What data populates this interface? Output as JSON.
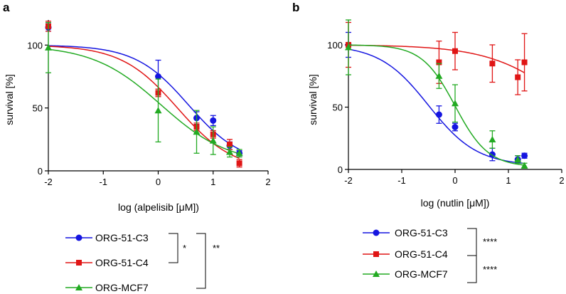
{
  "chart_data": [
    {
      "type": "scatter",
      "panel_label": "a",
      "xlabel": "log (alpelisib [μM])",
      "ylabel": "survival [%]",
      "xlim": [
        -2,
        2
      ],
      "ylim": [
        0,
        120
      ],
      "x_ticks": [
        -2,
        -1,
        0,
        1,
        2
      ],
      "x_tick_labels": [
        "-2",
        "-1",
        "0",
        "1",
        "2"
      ],
      "y_ticks": [
        0,
        50,
        100
      ],
      "y_tick_labels": [
        "0",
        "50",
        "100"
      ],
      "series": [
        {
          "name": "ORG-51-C3",
          "color": "#1515e0",
          "marker": "circle",
          "points": [
            {
              "x": -2,
              "y": 114,
              "err": 3
            },
            {
              "x": 0,
              "y": 75,
              "err": 13
            },
            {
              "x": 0.699,
              "y": 42,
              "err": 5
            },
            {
              "x": 1,
              "y": 40,
              "err": 4
            },
            {
              "x": 1.301,
              "y": 20,
              "err": 3
            },
            {
              "x": 1.477,
              "y": 14,
              "err": 2
            }
          ],
          "fit": {
            "top": 100,
            "bottom": 5,
            "logIC50": 0.55,
            "hill": -0.9
          }
        },
        {
          "name": "ORG-51-C4",
          "color": "#e01515",
          "marker": "square",
          "points": [
            {
              "x": -2,
              "y": 115,
              "err": 4
            },
            {
              "x": 0,
              "y": 62,
              "err": 3
            },
            {
              "x": 0.699,
              "y": 35,
              "err": 3
            },
            {
              "x": 1,
              "y": 29,
              "err": 3
            },
            {
              "x": 1.301,
              "y": 21,
              "err": 4
            },
            {
              "x": 1.477,
              "y": 6,
              "err": 3
            }
          ],
          "fit": {
            "top": 100,
            "bottom": 0,
            "logIC50": 0.35,
            "hill": -0.85
          }
        },
        {
          "name": "ORG-MCF7",
          "color": "#22aa22",
          "marker": "triangle",
          "points": [
            {
              "x": -2,
              "y": 98,
              "err": 20
            },
            {
              "x": 0,
              "y": 48,
              "err": 25
            },
            {
              "x": 0.699,
              "y": 31,
              "err": 17
            },
            {
              "x": 1,
              "y": 24,
              "err": 11
            },
            {
              "x": 1.301,
              "y": 15,
              "err": 4
            },
            {
              "x": 1.477,
              "y": 14,
              "err": 3
            }
          ],
          "fit": {
            "top": 100,
            "bottom": 5,
            "logIC50": 0.05,
            "hill": -0.7
          }
        }
      ],
      "legend": {
        "entries": [
          "ORG-51-C3",
          "ORG-51-C4",
          "ORG-MCF7"
        ],
        "significance": [
          {
            "between": [
              "ORG-51-C3",
              "ORG-51-C4"
            ],
            "label": "*"
          },
          {
            "between": [
              "ORG-51-C3",
              "ORG-MCF7"
            ],
            "label": "**"
          }
        ]
      }
    },
    {
      "type": "scatter",
      "panel_label": "b",
      "xlabel": "log (nutlin [μM])",
      "ylabel": "survival [%]",
      "xlim": [
        -2,
        2
      ],
      "ylim": [
        0,
        120
      ],
      "x_ticks": [
        -2,
        -1,
        0,
        1,
        2
      ],
      "x_tick_labels": [
        "-2",
        "-1",
        "0",
        "1",
        "2"
      ],
      "y_ticks": [
        0,
        50,
        100
      ],
      "y_tick_labels": [
        "0",
        "50",
        "100"
      ],
      "series": [
        {
          "name": "ORG-51-C3",
          "color": "#1515e0",
          "marker": "circle",
          "points": [
            {
              "x": -2,
              "y": 100,
              "err": 10
            },
            {
              "x": -0.301,
              "y": 44,
              "err": 7
            },
            {
              "x": 0,
              "y": 34,
              "err": 3
            },
            {
              "x": 0.699,
              "y": 12,
              "err": 5
            },
            {
              "x": 1.176,
              "y": 8,
              "err": 3
            },
            {
              "x": 1.301,
              "y": 11,
              "err": 2
            }
          ],
          "fit": {
            "top": 100,
            "bottom": 3,
            "logIC50": -0.5,
            "hill": -0.95
          }
        },
        {
          "name": "ORG-51-C4",
          "color": "#e01515",
          "marker": "square",
          "points": [
            {
              "x": -2,
              "y": 100,
              "err": 18
            },
            {
              "x": -0.301,
              "y": 86,
              "err": 17
            },
            {
              "x": 0,
              "y": 95,
              "err": 15
            },
            {
              "x": 0.699,
              "y": 85,
              "err": 15
            },
            {
              "x": 1.176,
              "y": 74,
              "err": 14
            },
            {
              "x": 1.301,
              "y": 86,
              "err": 23
            }
          ],
          "fit": {
            "top": 100,
            "bottom": 0,
            "logIC50": 2.2,
            "hill": -0.6
          }
        },
        {
          "name": "ORG-MCF7",
          "color": "#22aa22",
          "marker": "triangle",
          "points": [
            {
              "x": -2,
              "y": 98,
              "err": 22
            },
            {
              "x": -0.301,
              "y": 75,
              "err": 10
            },
            {
              "x": 0,
              "y": 53,
              "err": 15
            },
            {
              "x": 0.699,
              "y": 24,
              "err": 7
            },
            {
              "x": 1.176,
              "y": 8,
              "err": 3
            },
            {
              "x": 1.301,
              "y": 3,
              "err": 2
            }
          ],
          "fit": {
            "top": 100,
            "bottom": 2,
            "logIC50": 0.0,
            "hill": -1.4
          }
        }
      ],
      "legend": {
        "entries": [
          "ORG-51-C3",
          "ORG-51-C4",
          "ORG-MCF7"
        ],
        "significance": [
          {
            "between": [
              "ORG-51-C3",
              "ORG-51-C4"
            ],
            "label": "****"
          },
          {
            "between": [
              "ORG-51-C4",
              "ORG-MCF7"
            ],
            "label": "****"
          }
        ]
      }
    }
  ]
}
